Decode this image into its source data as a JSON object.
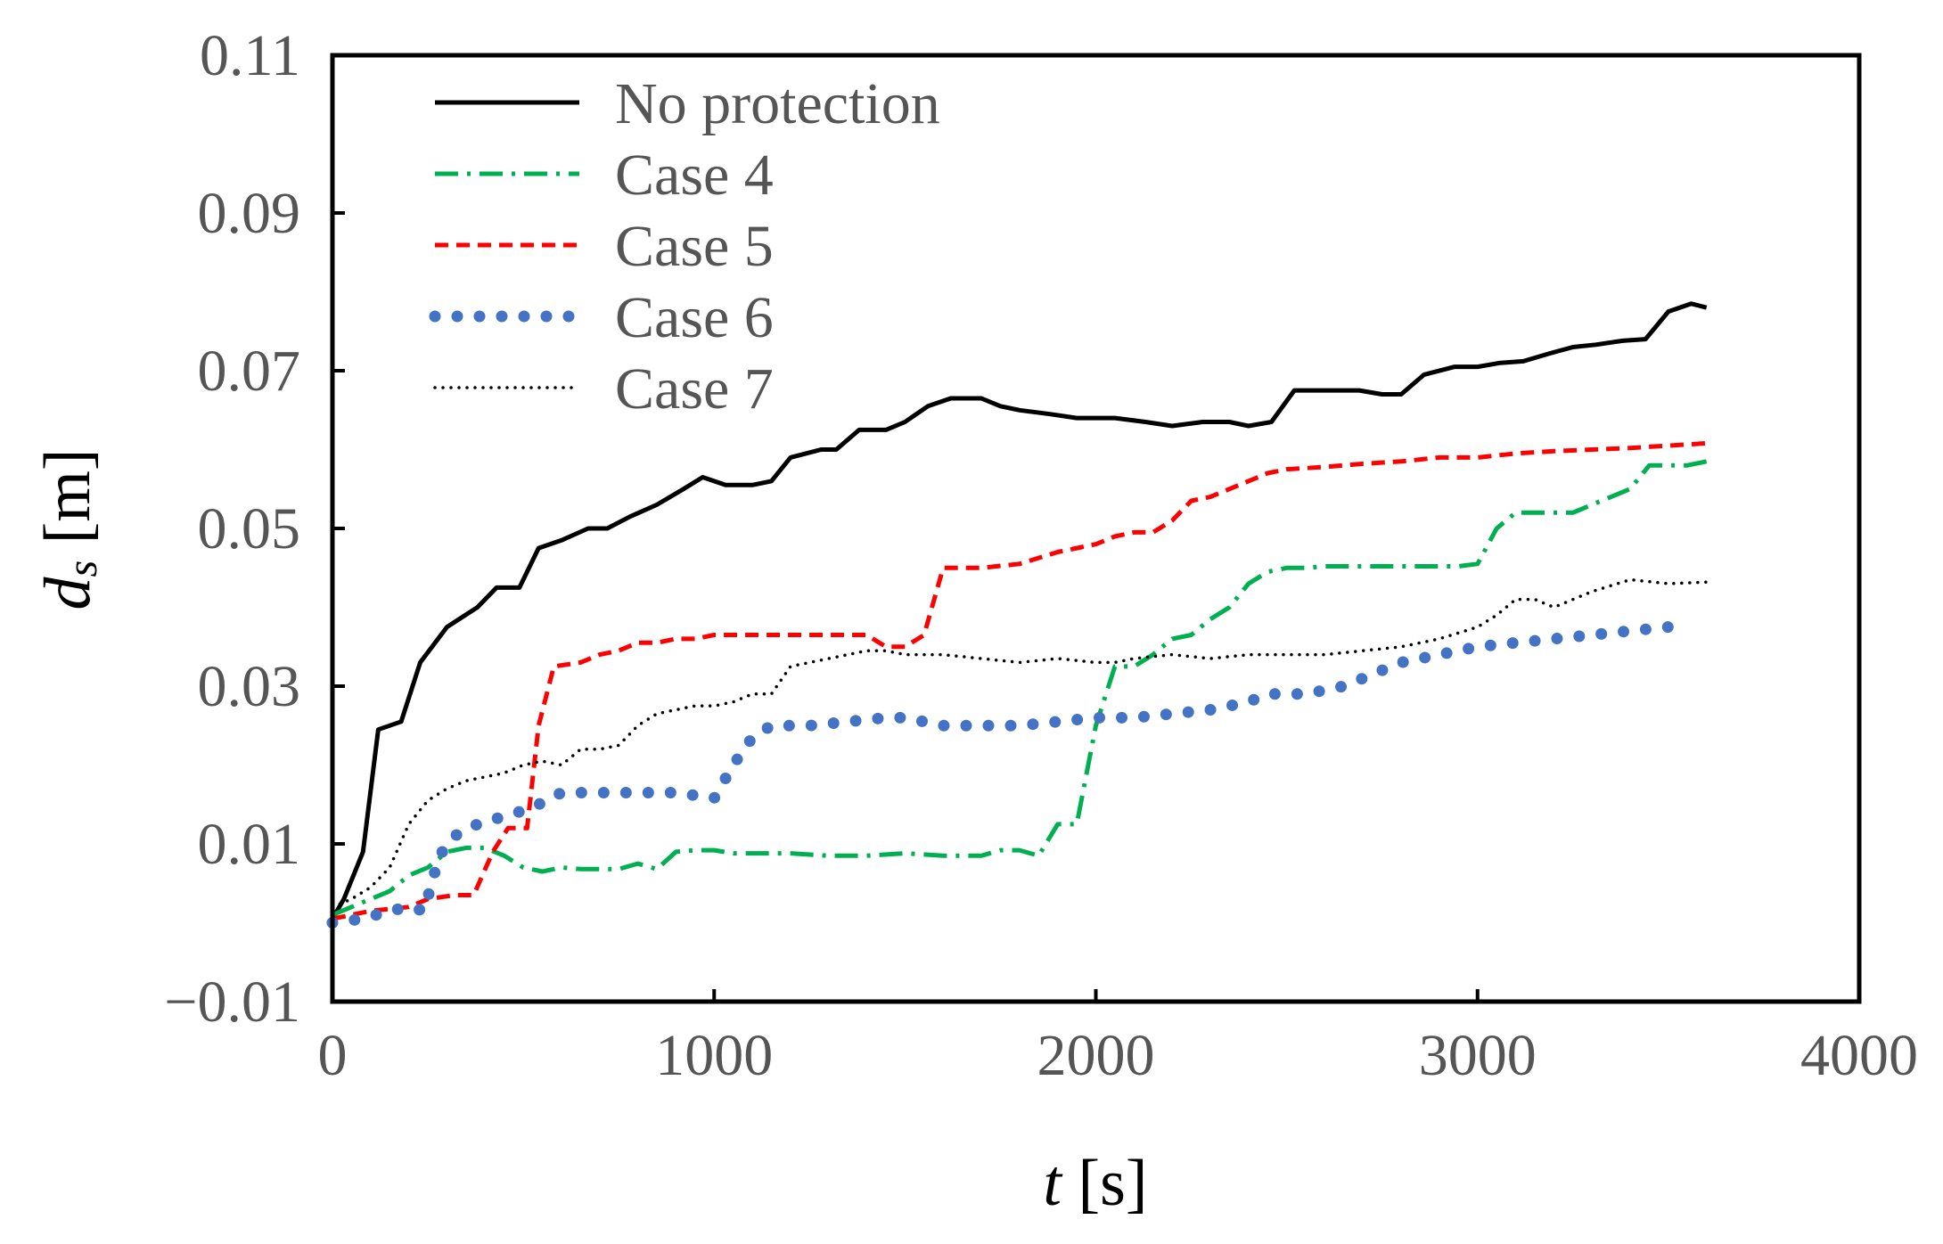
{
  "chart_data": {
    "type": "line",
    "title": "",
    "xlabel": {
      "var": "t",
      "unit": "[s]"
    },
    "ylabel": {
      "var": "d",
      "sub": "s",
      "unit": "[m]"
    },
    "xlim": [
      0,
      4000
    ],
    "ylim": [
      -0.01,
      0.11
    ],
    "xticks": [
      0,
      1000,
      2000,
      3000,
      4000
    ],
    "yticks": [
      -0.01,
      0.01,
      0.03,
      0.05,
      0.07,
      0.09,
      0.11
    ],
    "xtick_labels": [
      "0",
      "1000",
      "2000",
      "3000",
      "4000"
    ],
    "ytick_labels": [
      "−0.01",
      "0.01",
      "0.03",
      "0.05",
      "0.07",
      "0.09",
      "0.11"
    ],
    "grid": false,
    "legend_position": "top-left",
    "series": [
      {
        "name": "No protection",
        "color": "#000000",
        "style": "solid",
        "x": [
          0,
          30,
          80,
          120,
          180,
          230,
          300,
          380,
          430,
          490,
          540,
          600,
          670,
          720,
          780,
          850,
          920,
          970,
          1030,
          1100,
          1150,
          1200,
          1280,
          1320,
          1380,
          1450,
          1500,
          1560,
          1620,
          1700,
          1750,
          1800,
          1880,
          1950,
          2050,
          2130,
          2200,
          2280,
          2350,
          2400,
          2460,
          2520,
          2600,
          2690,
          2750,
          2800,
          2860,
          2940,
          3000,
          3060,
          3120,
          3190,
          3250,
          3310,
          3380,
          3440,
          3500,
          3560,
          3600
        ],
        "y": [
          0.0005,
          0.003,
          0.009,
          0.0245,
          0.0255,
          0.033,
          0.0375,
          0.04,
          0.0425,
          0.0425,
          0.0475,
          0.0485,
          0.05,
          0.05,
          0.0515,
          0.053,
          0.055,
          0.0565,
          0.0555,
          0.0555,
          0.056,
          0.059,
          0.06,
          0.06,
          0.0625,
          0.0625,
          0.0635,
          0.0655,
          0.0665,
          0.0665,
          0.0655,
          0.065,
          0.0645,
          0.064,
          0.064,
          0.0635,
          0.063,
          0.0635,
          0.0635,
          0.063,
          0.0635,
          0.0675,
          0.0675,
          0.0675,
          0.067,
          0.067,
          0.0695,
          0.0705,
          0.0705,
          0.071,
          0.0712,
          0.0722,
          0.073,
          0.0733,
          0.0738,
          0.074,
          0.0775,
          0.0785,
          0.078
        ]
      },
      {
        "name": "Case 4",
        "color": "#00b050",
        "style": "dashdot",
        "x": [
          0,
          100,
          150,
          200,
          250,
          300,
          350,
          400,
          450,
          500,
          550,
          600,
          650,
          700,
          750,
          800,
          850,
          900,
          950,
          1000,
          1050,
          1100,
          1150,
          1200,
          1300,
          1400,
          1500,
          1600,
          1700,
          1750,
          1800,
          1850,
          1900,
          1950,
          2000,
          2050,
          2100,
          2150,
          2200,
          2250,
          2300,
          2350,
          2400,
          2450,
          2500,
          2550,
          2600,
          2650,
          2700,
          2800,
          2900,
          2950,
          3000,
          3050,
          3100,
          3150,
          3250,
          3300,
          3350,
          3400,
          3450,
          3500,
          3550,
          3600
        ],
        "y": [
          0.001,
          0.003,
          0.004,
          0.006,
          0.007,
          0.009,
          0.0095,
          0.0095,
          0.0085,
          0.007,
          0.0065,
          0.007,
          0.0068,
          0.0068,
          0.0068,
          0.0075,
          0.0068,
          0.009,
          0.0092,
          0.0092,
          0.0088,
          0.0088,
          0.0088,
          0.0088,
          0.0085,
          0.0085,
          0.0088,
          0.0085,
          0.0085,
          0.0092,
          0.0092,
          0.0085,
          0.0125,
          0.0125,
          0.025,
          0.0325,
          0.0325,
          0.034,
          0.036,
          0.0365,
          0.0385,
          0.04,
          0.043,
          0.0445,
          0.045,
          0.045,
          0.0452,
          0.0452,
          0.0452,
          0.0452,
          0.0452,
          0.0452,
          0.0455,
          0.05,
          0.052,
          0.052,
          0.052,
          0.053,
          0.054,
          0.055,
          0.058,
          0.058,
          0.058,
          0.0585
        ]
      },
      {
        "name": "Case 5",
        "color": "#ff0000",
        "style": "dashed",
        "x": [
          0,
          100,
          200,
          250,
          320,
          370,
          420,
          460,
          510,
          540,
          580,
          650,
          700,
          750,
          800,
          850,
          900,
          950,
          1000,
          1100,
          1200,
          1300,
          1400,
          1450,
          1500,
          1550,
          1600,
          1700,
          1800,
          1900,
          2000,
          2050,
          2100,
          2150,
          2200,
          2250,
          2300,
          2400,
          2450,
          2500,
          2600,
          2700,
          2800,
          2900,
          3000,
          3100,
          3200,
          3300,
          3400,
          3500,
          3600
        ],
        "y": [
          0.0005,
          0.0015,
          0.002,
          0.003,
          0.0035,
          0.0035,
          0.009,
          0.012,
          0.012,
          0.025,
          0.0325,
          0.033,
          0.034,
          0.0345,
          0.0355,
          0.0355,
          0.036,
          0.036,
          0.0365,
          0.0365,
          0.0365,
          0.0365,
          0.0365,
          0.035,
          0.035,
          0.0365,
          0.045,
          0.045,
          0.0455,
          0.047,
          0.048,
          0.049,
          0.0495,
          0.0495,
          0.051,
          0.0535,
          0.054,
          0.056,
          0.057,
          0.0575,
          0.0578,
          0.0582,
          0.0585,
          0.059,
          0.059,
          0.0595,
          0.0598,
          0.06,
          0.0602,
          0.0605,
          0.0608
        ]
      },
      {
        "name": "Case 6",
        "color": "#4472c4",
        "style": "round-dotted",
        "x": [
          0,
          80,
          150,
          200,
          240,
          280,
          320,
          380,
          450,
          520,
          600,
          700,
          800,
          900,
          1000,
          1050,
          1100,
          1150,
          1250,
          1350,
          1450,
          1500,
          1600,
          1700,
          1800,
          1900,
          2000,
          2100,
          2200,
          2300,
          2400,
          2450,
          2550,
          2650,
          2700,
          2800,
          2900,
          3000,
          3100,
          3200,
          3300,
          3400,
          3500,
          3550
        ],
        "y": [
          0.0,
          0.0005,
          0.0015,
          0.002,
          0.0015,
          0.0085,
          0.011,
          0.0125,
          0.0135,
          0.0145,
          0.0165,
          0.0165,
          0.0165,
          0.0165,
          0.0158,
          0.02,
          0.0235,
          0.025,
          0.025,
          0.0255,
          0.026,
          0.026,
          0.025,
          0.025,
          0.025,
          0.0255,
          0.026,
          0.026,
          0.0265,
          0.027,
          0.028,
          0.029,
          0.029,
          0.03,
          0.031,
          0.033,
          0.034,
          0.035,
          0.0355,
          0.036,
          0.0365,
          0.037,
          0.0375,
          0.038
        ]
      },
      {
        "name": "Case 7",
        "color": "#000000",
        "style": "fine-dotted",
        "x": [
          0,
          50,
          100,
          150,
          200,
          250,
          300,
          350,
          400,
          450,
          500,
          550,
          600,
          650,
          700,
          750,
          800,
          850,
          900,
          950,
          1000,
          1050,
          1100,
          1150,
          1200,
          1250,
          1300,
          1350,
          1400,
          1450,
          1500,
          1600,
          1700,
          1800,
          1900,
          2000,
          2050,
          2100,
          2200,
          2300,
          2400,
          2500,
          2600,
          2700,
          2800,
          2900,
          3000,
          3050,
          3100,
          3150,
          3200,
          3300,
          3400,
          3500,
          3600
        ],
        "y": [
          0.002,
          0.003,
          0.0045,
          0.007,
          0.0125,
          0.0155,
          0.017,
          0.018,
          0.0185,
          0.019,
          0.02,
          0.0205,
          0.02,
          0.022,
          0.022,
          0.0225,
          0.025,
          0.0265,
          0.027,
          0.0275,
          0.0275,
          0.028,
          0.029,
          0.029,
          0.0325,
          0.033,
          0.0335,
          0.034,
          0.0345,
          0.0345,
          0.034,
          0.034,
          0.0335,
          0.033,
          0.0335,
          0.033,
          0.033,
          0.0335,
          0.034,
          0.0335,
          0.034,
          0.034,
          0.034,
          0.0345,
          0.035,
          0.036,
          0.0375,
          0.039,
          0.041,
          0.041,
          0.04,
          0.042,
          0.0435,
          0.043,
          0.0432
        ]
      }
    ]
  }
}
